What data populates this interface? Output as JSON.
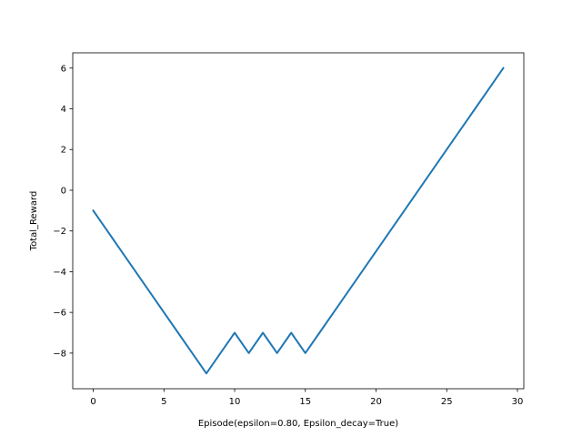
{
  "chart_data": {
    "type": "line",
    "title": "",
    "xlabel": "Episode(epsilon=0.80, Epsilon_decay=True)",
    "ylabel": "Total_Reward",
    "xlim": [
      -1.45,
      30.45
    ],
    "ylim": [
      -9.75,
      6.75
    ],
    "xticks": [
      0,
      5,
      10,
      15,
      20,
      25,
      30
    ],
    "yticks": [
      -8,
      -6,
      -4,
      -2,
      0,
      2,
      4,
      6
    ],
    "xtick_labels": [
      "0",
      "5",
      "10",
      "15",
      "20",
      "25",
      "30"
    ],
    "ytick_labels": [
      "−8",
      "−6",
      "−4",
      "−2",
      "0",
      "2",
      "4",
      "6"
    ],
    "grid": false,
    "legend": "none",
    "series": [
      {
        "color": "#1f77b4",
        "x": [
          0,
          1,
          2,
          3,
          4,
          5,
          6,
          7,
          8,
          9,
          10,
          11,
          12,
          13,
          14,
          15,
          16,
          17,
          18,
          19,
          20,
          21,
          22,
          23,
          24,
          25,
          26,
          27,
          28,
          29
        ],
        "y": [
          -1,
          -2,
          -3,
          -4,
          -5,
          -6,
          -7,
          -8,
          -9,
          -8,
          -7,
          -8,
          -7,
          -8,
          -7,
          -8,
          -7,
          -6,
          -5,
          -4,
          -3,
          -2,
          -1,
          0,
          1,
          2,
          3,
          4,
          5,
          6
        ]
      }
    ]
  }
}
